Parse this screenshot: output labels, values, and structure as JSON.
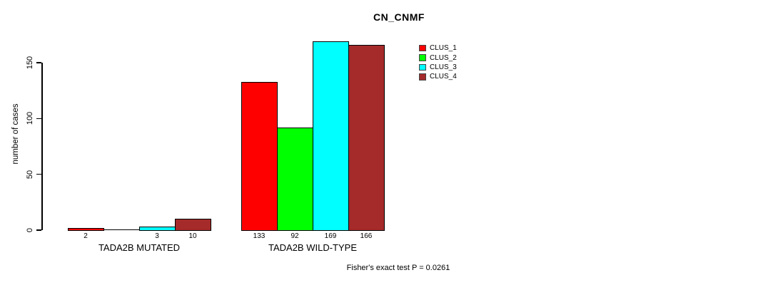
{
  "title": "CN_CNMF",
  "ylabel": "number of cases",
  "footnote": "Fisher's exact test P = 0.0261",
  "chart_data": {
    "type": "bar",
    "grouped": true,
    "title": "CN_CNMF",
    "xlabel": "",
    "ylabel": "number of cases",
    "categories": [
      "TADA2B MUTATED",
      "TADA2B WILD-TYPE"
    ],
    "series": [
      {
        "name": "CLUS_1",
        "color": "#FF0000",
        "values": [
          2,
          133
        ]
      },
      {
        "name": "CLUS_2",
        "color": "#00FF00",
        "values": [
          0,
          92
        ]
      },
      {
        "name": "CLUS_3",
        "color": "#00FFFF",
        "values": [
          3,
          169
        ]
      },
      {
        "name": "CLUS_4",
        "color": "#A52A2A",
        "values": [
          10,
          166
        ]
      }
    ],
    "bar_value_labels": [
      [
        "2",
        "",
        "3",
        "10"
      ],
      [
        "133",
        "92",
        "169",
        "166"
      ]
    ],
    "ylim": [
      0,
      150
    ],
    "yticks": [
      0,
      50,
      100,
      150
    ],
    "legend_position": "top-right",
    "grid": false,
    "annotation": "Fisher's exact test P = 0.0261"
  }
}
